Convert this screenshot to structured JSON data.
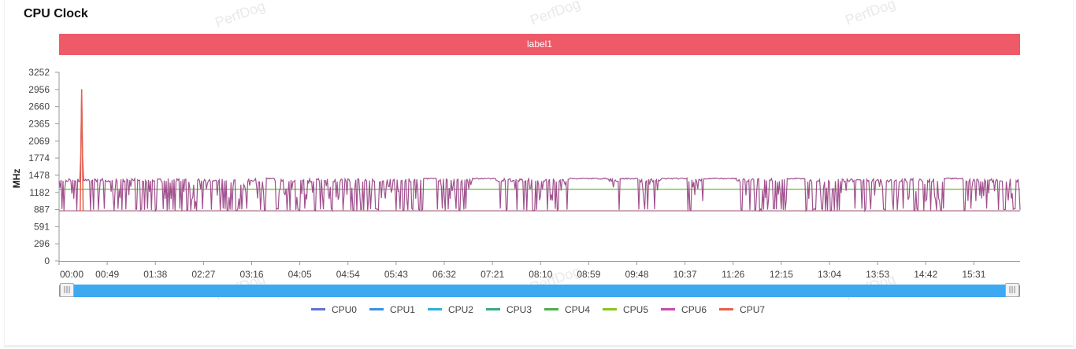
{
  "title": "CPU Clock",
  "watermark": "PerfDog",
  "label_band": "label1",
  "colors": {
    "band": "#ee5a68",
    "grid": "#999999",
    "scroll": "#3ea8f0"
  },
  "chart_data": {
    "type": "line",
    "title": "CPU Clock",
    "ylabel": "MHz",
    "xlabel": "",
    "ylim": [
      0,
      3252
    ],
    "yticks": [
      "3252",
      "2956",
      "2660",
      "2365",
      "2069",
      "1774",
      "1478",
      "1182",
      "887",
      "591",
      "296",
      "0"
    ],
    "ytick_values": [
      3252,
      2956,
      2660,
      2365,
      2069,
      1774,
      1478,
      1182,
      887,
      591,
      296,
      0
    ],
    "x_ticks": [
      "00:00",
      "00:49",
      "01:38",
      "02:27",
      "03:16",
      "04:05",
      "04:54",
      "05:43",
      "06:32",
      "07:21",
      "08:10",
      "08:59",
      "09:48",
      "10:37",
      "11:26",
      "12:15",
      "13:04",
      "13:53",
      "14:42",
      "15:31"
    ],
    "x_range_seconds": [
      0,
      978
    ],
    "series": [
      {
        "name": "CPU0",
        "color": "#6470d6",
        "baseline": 864,
        "pattern": "flat"
      },
      {
        "name": "CPU1",
        "color": "#3b8fe8",
        "baseline": 864,
        "pattern": "flat"
      },
      {
        "name": "CPU2",
        "color": "#2db0e0",
        "baseline": 1235,
        "pattern": "flat"
      },
      {
        "name": "CPU3",
        "color": "#3aa98a",
        "baseline": 1235,
        "pattern": "flat"
      },
      {
        "name": "CPU4",
        "color": "#4cae4c",
        "baseline": 1235,
        "pattern": "flat"
      },
      {
        "name": "CPU5",
        "color": "#8ac51f",
        "baseline": 1235,
        "pattern": "flat"
      },
      {
        "name": "CPU6",
        "color": "#c94ab2",
        "low": 864,
        "high": 1420,
        "pattern": "oscillating",
        "spike": {
          "t": 23,
          "value": 2960
        }
      },
      {
        "name": "CPU7",
        "color": "#e8604a",
        "baseline": 864,
        "pattern": "flat",
        "spike": {
          "t": 23,
          "value": 2960
        }
      }
    ],
    "legend": [
      "CPU0",
      "CPU1",
      "CPU2",
      "CPU3",
      "CPU4",
      "CPU5",
      "CPU6",
      "CPU7"
    ],
    "legend_position": "bottom-center"
  },
  "scrollbar": {
    "left_handle": "|||",
    "right_handle": "|||"
  }
}
